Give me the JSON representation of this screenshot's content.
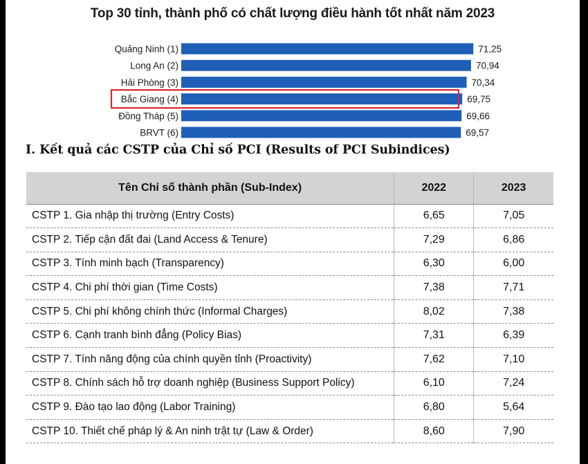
{
  "chart_data": {
    "type": "bar",
    "orientation": "horizontal",
    "title": "Top 30 tỉnh, thành phố có chất lượng điều hành tốt nhất năm 2023",
    "categories": [
      "Quảng Ninh (1)",
      "Long An (2)",
      "Hải Phòng (3)",
      "Bắc Giang (4)",
      "Đồng Tháp (5)",
      "BRVT (6)"
    ],
    "value_labels": [
      "71,25",
      "70,94",
      "70,34",
      "69,75",
      "69,66",
      "69,57"
    ],
    "values": [
      71.25,
      70.94,
      70.34,
      69.75,
      69.66,
      69.57
    ],
    "highlight": "Bắc Giang (4)",
    "bar_color": "#1f5fb8",
    "highlight_color": "#d8262c",
    "grid": false,
    "legend": "none"
  },
  "section": {
    "heading": "I. Kết quả các CSTP của Chỉ số PCI (Results of PCI Subindices)"
  },
  "table": {
    "headers": [
      "Tên Chỉ số thành phần (Sub-Index)",
      "2022",
      "2023"
    ],
    "rows": [
      [
        "CSTP 1. Gia nhập thị trường (Entry Costs)",
        "6,65",
        "7,05"
      ],
      [
        "CSTP 2. Tiếp cận đất đai (Land Access & Tenure)",
        "7,29",
        "6,86"
      ],
      [
        "CSTP 3. Tính minh bạch (Transparency)",
        "6,30",
        "6,00"
      ],
      [
        "CSTP 4. Chi phí thời gian (Time Costs)",
        "7,38",
        "7,71"
      ],
      [
        "CSTP 5. Chi phí không chính thức (Informal Charges)",
        "8,02",
        "7,38"
      ],
      [
        "CSTP 6. Cạnh tranh bình đẳng (Policy Bias)",
        "7,31",
        "6,39"
      ],
      [
        "CSTP 7. Tính năng động của chính quyền tỉnh (Proactivity)",
        "7,62",
        "7,10"
      ],
      [
        "CSTP 8. Chính sách hỗ trợ doanh nghiệp (Business Support Policy)",
        "6,10",
        "7,24"
      ],
      [
        "CSTP 9. Đào tạo lao động (Labor Training)",
        "6,80",
        "5,64"
      ],
      [
        "CSTP 10. Thiết chế pháp lý & An ninh trật tự (Law & Order)",
        "8,60",
        "7,90"
      ]
    ]
  }
}
